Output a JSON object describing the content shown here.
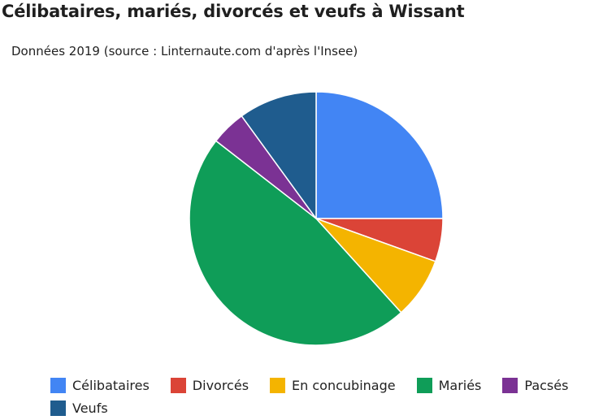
{
  "chart_data": {
    "type": "pie",
    "title": "Célibataires, mariés, divorcés et veufs à Wissant",
    "subtitle": "Données 2019 (source : Linternaute.com d'après l'Insee)",
    "categories": [
      "Célibataires",
      "Divorcés",
      "En concubinage",
      "Mariés",
      "Pacsés",
      "Veufs"
    ],
    "values": [
      25.0,
      5.5,
      7.8,
      47.2,
      4.5,
      10.0
    ],
    "unit": "%",
    "colors": [
      "#4285F4",
      "#DB4437",
      "#F4B400",
      "#0F9D58",
      "#7B3294",
      "#1F5C8E"
    ],
    "start_angle": "top (12 o'clock)",
    "direction": "clockwise",
    "legend_position": "bottom"
  }
}
